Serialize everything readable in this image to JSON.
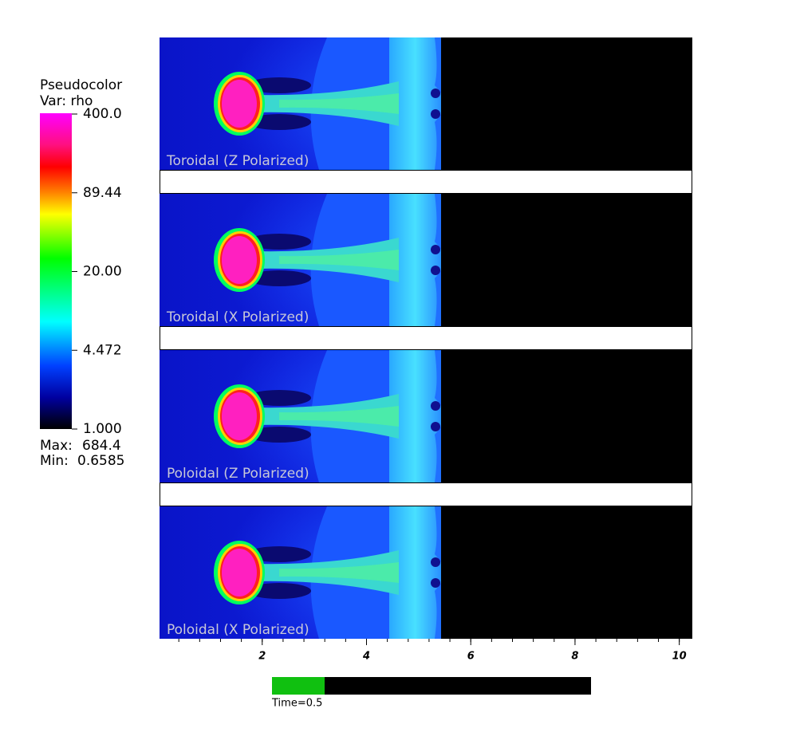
{
  "legend": {
    "title": "Pseudocolor",
    "variable": "Var: rho",
    "ticks": [
      "400.0",
      "89.44",
      "20.00",
      "4.472",
      "1.000"
    ],
    "max_label": "Max:",
    "max": "684.4",
    "min_label": "Min:",
    "min": "0.6585"
  },
  "panels": [
    {
      "label": "Toroidal (Z Polarized)"
    },
    {
      "label": "Toroidal (X Polarized)"
    },
    {
      "label": "Poloidal (Z Polarized)"
    },
    {
      "label": "Poloidal (X Polarized)"
    }
  ],
  "x_axis": {
    "xlim": [
      0.03,
      10.25
    ],
    "ticks": [
      2,
      4,
      6,
      8,
      10
    ]
  },
  "time_slider": {
    "label": "Time=0.5"
  }
}
